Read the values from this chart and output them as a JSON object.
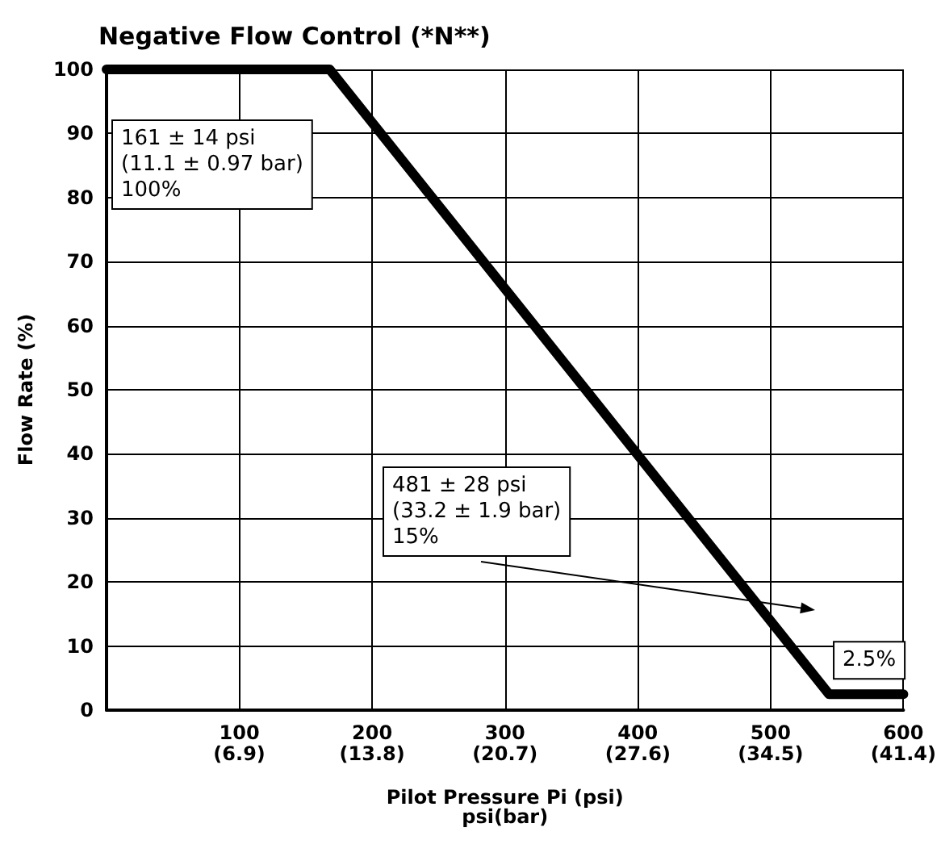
{
  "chart_data": {
    "type": "line",
    "title": "Negative Flow Control (*N**)",
    "xlabel": "Pilot Pressure Pi (psi)\npsi(bar)",
    "ylabel": "Flow Rate (%)",
    "x": [
      0,
      168,
      544,
      600
    ],
    "series": [
      {
        "color": "#000000",
        "values": [
          100,
          100,
          2.5,
          2.5
        ]
      }
    ],
    "xlim": [
      0,
      600
    ],
    "xticks": [
      100,
      200,
      300,
      400,
      500,
      600
    ],
    "x2lim": [
      0,
      41.4
    ],
    "x2ticks": [
      {
        "value": 6.9,
        "label": "(6.9)"
      },
      {
        "value": 13.8,
        "label": "(13.8)"
      },
      {
        "value": 20.7,
        "label": "(20.7)"
      },
      {
        "value": 27.6,
        "label": "(27.6)"
      },
      {
        "value": 34.5,
        "label": "(34.5)"
      },
      {
        "value": 41.4,
        "label": "(41.4)"
      }
    ],
    "ylim": [
      0,
      100
    ],
    "yticks": [
      0,
      10,
      20,
      30,
      40,
      50,
      60,
      70,
      80,
      90,
      100
    ],
    "grid": true,
    "marker": "none",
    "line_style": "solid",
    "annotations": [
      "161 ± 14 psi\n(11.1 ± 0.97 bar)\n100%",
      "481 ± 28 psi\n(33.2 ± 1.9 bar)\n15%",
      {
        "text": "2.5%",
        "x": 570,
        "y": 2.5
      }
    ]
  }
}
